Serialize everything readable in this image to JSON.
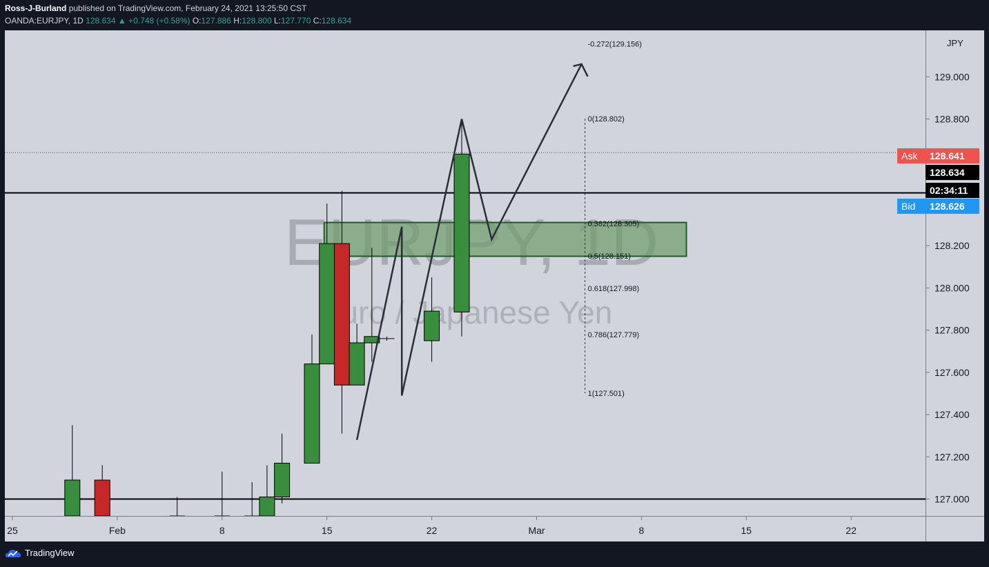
{
  "header": {
    "author": "Ross-J-Burland",
    "published": "published on TradingView.com, February 24, 2021 13:25:50 CST",
    "symbol": "OANDA:EURJPY, 1D",
    "last": "128.634",
    "change": "▲ +0.748 (+0.58%)",
    "o_label": "O:",
    "o_value": "127.886",
    "h_label": "H:",
    "h_value": "128.800",
    "l_label": "L:",
    "l_value": "127.770",
    "c_label": "C:",
    "c_value": "128.634"
  },
  "price_axis": {
    "currency": "JPY",
    "ask_label": "Ask",
    "ask_value": "128.641",
    "last_value": "128.634",
    "countdown": "02:34:11",
    "bid_label": "Bid",
    "bid_value": "128.626"
  },
  "footer": {
    "brand": "TradingView"
  },
  "chart_data": {
    "type": "candlestick",
    "watermark_title": "EURJPY, 1D",
    "watermark_subtitle": "Euro / Japanese Yen",
    "y_range": [
      126.92,
      129.22
    ],
    "y_ticks": [
      "129.000",
      "128.800",
      "128.200",
      "128.000",
      "127.800",
      "127.600",
      "127.400",
      "127.200",
      "127.000"
    ],
    "y_tick_values": [
      129.0,
      128.8,
      128.2,
      128.0,
      127.8,
      127.6,
      127.4,
      127.2,
      127.0
    ],
    "x_ticks": [
      {
        "label": "25",
        "date": "2021-01-25"
      },
      {
        "label": "Feb",
        "date": "2021-02-01"
      },
      {
        "label": "8",
        "date": "2021-02-08"
      },
      {
        "label": "15",
        "date": "2021-02-15"
      },
      {
        "label": "22",
        "date": "2021-02-22"
      },
      {
        "label": "Mar",
        "date": "2021-03-01"
      },
      {
        "label": "8",
        "date": "2021-03-08"
      },
      {
        "label": "15",
        "date": "2021-03-15"
      },
      {
        "label": "22",
        "date": "2021-03-22"
      }
    ],
    "candles": [
      {
        "date": "2021-01-29",
        "o": 126.92,
        "h": 127.35,
        "l": 126.92,
        "c": 127.09
      },
      {
        "date": "2021-01-31",
        "o": 127.09,
        "h": 127.16,
        "l": 126.92,
        "c": 126.92
      },
      {
        "date": "2021-02-05",
        "o": 126.92,
        "h": 127.01,
        "l": 126.92,
        "c": 126.92
      },
      {
        "date": "2021-02-08",
        "o": 126.92,
        "h": 127.13,
        "l": 126.92,
        "c": 126.92
      },
      {
        "date": "2021-02-10",
        "o": 126.92,
        "h": 127.08,
        "l": 126.92,
        "c": 126.92
      },
      {
        "date": "2021-02-11",
        "o": 126.92,
        "h": 127.16,
        "l": 126.92,
        "c": 127.01
      },
      {
        "date": "2021-02-12",
        "o": 127.01,
        "h": 127.31,
        "l": 126.98,
        "c": 127.17
      },
      {
        "date": "2021-02-14",
        "o": 127.17,
        "h": 127.78,
        "l": 127.17,
        "c": 127.64
      },
      {
        "date": "2021-02-15",
        "o": 127.64,
        "h": 128.4,
        "l": 127.64,
        "c": 128.21
      },
      {
        "date": "2021-02-16",
        "o": 128.21,
        "h": 128.46,
        "l": 127.31,
        "c": 127.54
      },
      {
        "date": "2021-02-17",
        "o": 127.54,
        "h": 127.83,
        "l": 127.54,
        "c": 127.74
      },
      {
        "date": "2021-02-18",
        "o": 127.74,
        "h": 128.19,
        "l": 127.65,
        "c": 127.77
      },
      {
        "date": "2021-02-19",
        "o": 127.76,
        "h": 127.77,
        "l": 127.75,
        "c": 127.76
      },
      {
        "date": "2021-02-22",
        "o": 127.75,
        "h": 128.05,
        "l": 127.65,
        "c": 127.89
      },
      {
        "date": "2021-02-24",
        "o": 127.886,
        "h": 128.8,
        "l": 127.77,
        "c": 128.634
      }
    ],
    "fib_levels": [
      {
        "label": "-0.272(129.156)",
        "value": 129.156
      },
      {
        "label": "0(128.802)",
        "value": 128.802
      },
      {
        "label": "0.382(128.305)",
        "value": 128.305
      },
      {
        "label": "0.5(128.151)",
        "value": 128.151
      },
      {
        "label": "0.618(127.998)",
        "value": 127.998
      },
      {
        "label": "0.786(127.779)",
        "value": 127.779
      },
      {
        "label": "1(127.501)",
        "value": 127.501
      }
    ],
    "zone": {
      "top": 128.31,
      "bottom": 128.15
    },
    "horizontal_lines": [
      128.45,
      127.0
    ],
    "projection_path": [
      {
        "date": "2021-02-17",
        "value": 127.28
      },
      {
        "date": "2021-02-20",
        "value": 128.29
      },
      {
        "date": "2021-02-20",
        "value": 127.49
      },
      {
        "date": "2021-02-24",
        "value": 128.8
      },
      {
        "date": "2021-02-26",
        "value": 128.23
      },
      {
        "date": "2021-03-04",
        "value": 129.06
      }
    ],
    "colors": {
      "up": "#388e3c",
      "down": "#c62828",
      "ask": "#ef5350",
      "bid": "#2196f3",
      "zone_fill": "#6f9c68",
      "line": "#000000"
    }
  }
}
